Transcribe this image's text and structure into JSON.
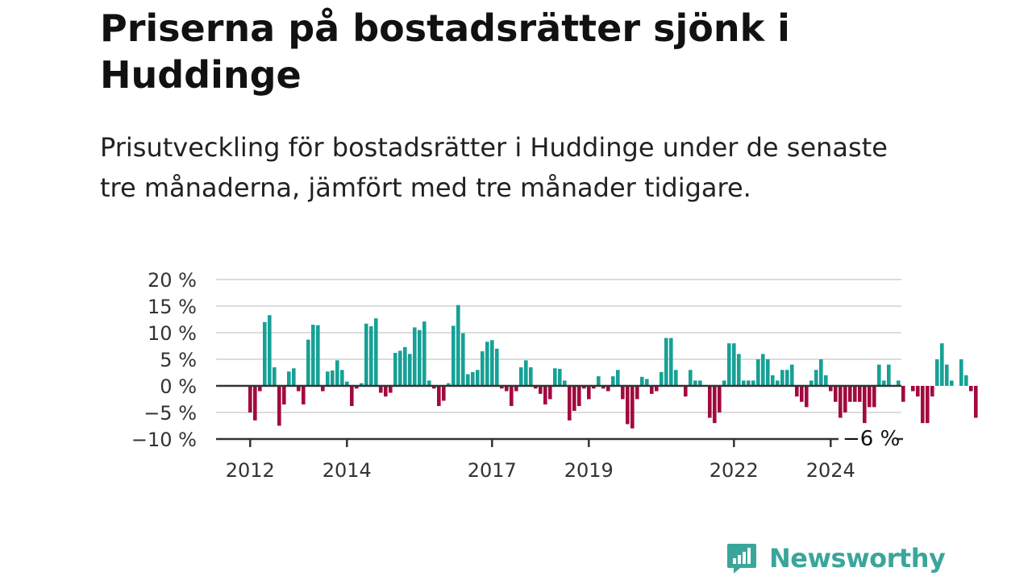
{
  "header": {
    "title": "Priserna på bostadsrätter sjönk i Huddinge",
    "subtitle": "Prisutveckling för bostadsrätter i Huddinge under de senaste tre månaderna, jämfört med tre månader tidigare."
  },
  "brand": {
    "name": "Newsworthy",
    "color": "#3aa69b"
  },
  "colors": {
    "positive": "#16a196",
    "negative": "#a3093f",
    "grid": "#dcdcdc",
    "baseline": "#333333"
  },
  "chart_data": {
    "type": "bar",
    "ylim": [
      -10,
      20
    ],
    "y_ticks": [
      20,
      15,
      10,
      5,
      0,
      -5,
      -10
    ],
    "y_tick_labels": [
      "20 %",
      "15 %",
      "10 %",
      "5 %",
      "0 %",
      "−5 %",
      "−10 %"
    ],
    "x_ticks": [
      {
        "label": "2012",
        "index": 0
      },
      {
        "label": "2014",
        "index": 20
      },
      {
        "label": "2017",
        "index": 50
      },
      {
        "label": "2019",
        "index": 70
      },
      {
        "label": "2022",
        "index": 100
      },
      {
        "label": "2024",
        "index": 120
      }
    ],
    "end_label": "−6 %",
    "values": [
      -5,
      -6.5,
      -1,
      12,
      13.3,
      3.5,
      -7.5,
      -3.5,
      2.7,
      3.3,
      -1,
      -3.5,
      8.7,
      11.5,
      11.4,
      -1,
      2.7,
      2.9,
      4.8,
      3,
      0.8,
      -3.8,
      -0.5,
      0.5,
      11.7,
      11.2,
      12.7,
      -1.3,
      -2,
      -1.3,
      6.2,
      6.6,
      7.3,
      6,
      11,
      10.5,
      12.1,
      1,
      -0.5,
      -3.8,
      -2.8,
      0.5,
      11.3,
      15.2,
      9.9,
      2.2,
      2.6,
      3,
      6.5,
      8.3,
      8.6,
      7,
      -0.5,
      -1,
      -3.8,
      -1,
      3.5,
      4.8,
      3.5,
      -0.5,
      -1.5,
      -3.5,
      -2.5,
      3.3,
      3.2,
      1,
      -6.5,
      -4.7,
      -3.8,
      -0.5,
      -2.5,
      -0.5,
      1.8,
      -0.5,
      -1,
      1.8,
      3,
      -2.5,
      -7.2,
      -8,
      -2.5,
      1.7,
      1.3,
      -1.5,
      -1,
      2.6,
      9,
      9,
      3,
      0,
      -2,
      3,
      1,
      1,
      0,
      -6,
      -7,
      -5,
      1,
      8,
      8,
      6,
      1,
      1,
      1,
      5,
      6,
      5,
      2,
      1,
      3,
      3,
      4,
      -2,
      -3,
      -4,
      1,
      3,
      5,
      2,
      -1,
      -3,
      -6,
      -5,
      -3,
      -3,
      -3,
      -7,
      -4,
      -4,
      4,
      1,
      4,
      0,
      1,
      -3,
      0,
      -1,
      -2,
      -7,
      -7,
      -2,
      5,
      8,
      4,
      1,
      0,
      5,
      2,
      -1,
      -6
    ]
  }
}
